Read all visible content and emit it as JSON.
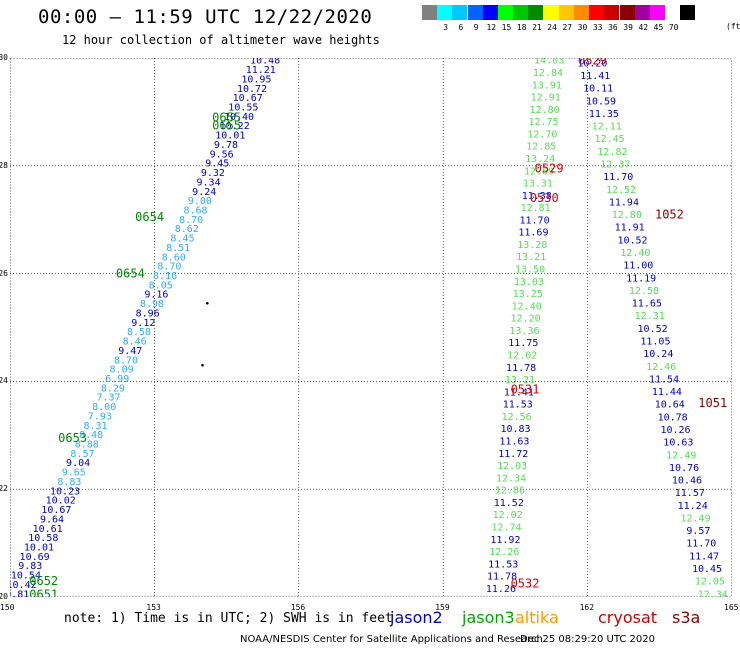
{
  "header": {
    "title": "00:00 – 11:59 UTC 12/22/2020",
    "subtitle": "12 hour collection of altimeter wave heights"
  },
  "legend": {
    "swatches": [
      {
        "label": "",
        "color": "#808080"
      },
      {
        "label": "3",
        "color": "#00ffff"
      },
      {
        "label": "6",
        "color": "#00c8ff"
      },
      {
        "label": "9",
        "color": "#0064ff"
      },
      {
        "label": "12",
        "color": "#0000ff"
      },
      {
        "label": "15",
        "color": "#00ff00"
      },
      {
        "label": "18",
        "color": "#00c800"
      },
      {
        "label": "21",
        "color": "#008c00"
      },
      {
        "label": "24",
        "color": "#ffff00"
      },
      {
        "label": "27",
        "color": "#ffc800"
      },
      {
        "label": "30",
        "color": "#ff8c00"
      },
      {
        "label": "33",
        "color": "#ff0000"
      },
      {
        "label": "36",
        "color": "#c80000"
      },
      {
        "label": "39",
        "color": "#8c0000"
      },
      {
        "label": "42",
        "color": "#a000a0"
      },
      {
        "label": "45",
        "color": "#ff00ff"
      },
      {
        "label": "70",
        "color": "#ffffff"
      },
      {
        "label": "",
        "color": "#000000"
      }
    ],
    "unit": "(ft)"
  },
  "axes": {
    "y_ticks": [
      "20",
      "22",
      "24",
      "26",
      "28",
      "30"
    ],
    "x_ticks": [
      "150",
      "153",
      "156",
      "159",
      "162",
      "165"
    ],
    "lon_range": [
      150,
      165
    ],
    "lat_range": [
      20,
      30
    ]
  },
  "footer": {
    "note": "note:  1) Time is in UTC;  2) SWH is in feet",
    "satellites": [
      {
        "name": "jason2",
        "color": "#0000cc"
      },
      {
        "name": "jason3",
        "color": "#00aa00"
      },
      {
        "name": "altika",
        "color": "#ff9900"
      },
      {
        "name": "cryosat",
        "color": "#cc0000"
      },
      {
        "name": "s3a",
        "color": "#880000"
      }
    ],
    "credit": "NOAA/NESDIS Center for Satellite Applications and Research",
    "date_stamp": "Dec 25 08:29:20 UTC 2020"
  },
  "colors": {
    "blue": "#0000cc",
    "lightblue": "#33aaff",
    "lightgreen": "#55dd55",
    "green": "#008800",
    "red": "#dd0000",
    "darkred": "#880000",
    "grid": "#000000"
  },
  "tracks": {
    "track_a_values": [
      "9.81",
      "10.42",
      "10.54",
      "9.83",
      "10.69",
      "10.01",
      "10.58",
      "10.61",
      "9.64",
      "10.67",
      "10.02",
      "10.23",
      "8.83",
      "9.65",
      "9.04",
      "8.57",
      "8.88",
      "8.48",
      "8.31",
      "7.93",
      "8.00",
      "7.37",
      "8.29",
      "6.99",
      "8.09",
      "8.70",
      "9.47",
      "8.46",
      "8.58",
      "9.12",
      "8.96",
      "8.98",
      "9.16",
      "8.05",
      "8.16",
      "8.70",
      "8.60",
      "8.51",
      "8.45",
      "8.62",
      "8.70",
      "8.68",
      "9.00",
      "9.24",
      "9.34",
      "9.32",
      "9.45",
      "9.56",
      "9.78",
      "10.01",
      "10.22",
      "10.40",
      "10.55",
      "10.67",
      "10.72",
      "10.95",
      "11.21",
      "10.48"
    ],
    "track_a_colors": [
      "b",
      "b",
      "b",
      "b",
      "b",
      "b",
      "b",
      "b",
      "b",
      "b",
      "b",
      "b",
      "l",
      "l",
      "b",
      "l",
      "l",
      "l",
      "l",
      "l",
      "l",
      "l",
      "l",
      "l",
      "l",
      "l",
      "b",
      "l",
      "l",
      "b",
      "b",
      "l",
      "b",
      "l",
      "l",
      "l",
      "l",
      "l",
      "l",
      "l",
      "l",
      "l",
      "l",
      "b",
      "b",
      "b",
      "b",
      "b",
      "b",
      "b",
      "b",
      "b",
      "b",
      "b",
      "b",
      "b",
      "b",
      "b"
    ],
    "track_a_time_labels": [
      {
        "text": "0651",
        "lat": 20.05,
        "lon": 150.4
      },
      {
        "text": "0652",
        "lat": 20.3,
        "lon": 150.4
      },
      {
        "text": "0653",
        "lat": 22.95,
        "lon": 151.0
      },
      {
        "text": "0654",
        "lat": 26.0,
        "lon": 152.2
      },
      {
        "text": "0654",
        "lat": 27.05,
        "lon": 152.6
      },
      {
        "text": "0655",
        "lat": 28.75,
        "lon": 154.2
      },
      {
        "text": "0655",
        "lat": 28.9,
        "lon": 154.2
      }
    ],
    "track_b_values": [
      "11.26",
      "11.78",
      "11.53",
      "12.26",
      "11.92",
      "12.74",
      "12.02",
      "11.52",
      "12.86",
      "12.34",
      "12.03",
      "11.72",
      "11.63",
      "10.83",
      "12.56",
      "11.53",
      "11.41",
      "13.21",
      "11.78",
      "12.02",
      "11.75",
      "13.36",
      "12.20",
      "12.40",
      "13.25",
      "13.03",
      "13.50",
      "13.21",
      "13.28",
      "11.69",
      "11.70",
      "12.81",
      "11.38",
      "13.31",
      "12.69",
      "13.24",
      "12.85",
      "12.70",
      "12.75",
      "12.80",
      "12.91",
      "13.91",
      "12.84",
      "14.03"
    ],
    "track_b_colors": [
      "b",
      "b",
      "b",
      "g",
      "b",
      "g",
      "g",
      "b",
      "g",
      "g",
      "g",
      "b",
      "b",
      "b",
      "g",
      "b",
      "b",
      "g",
      "b",
      "g",
      "b",
      "g",
      "g",
      "g",
      "g",
      "g",
      "g",
      "g",
      "g",
      "b",
      "b",
      "g",
      "b",
      "g",
      "g",
      "g",
      "g",
      "g",
      "g",
      "g",
      "g",
      "g",
      "g",
      "g"
    ],
    "track_b_time_labels": [
      {
        "text": "0532",
        "lat": 20.25,
        "lon": 160.4,
        "c": "red"
      },
      {
        "text": "0531",
        "lat": 23.85,
        "lon": 160.4,
        "c": "red"
      },
      {
        "text": "0530",
        "lat": 27.4,
        "lon": 160.8,
        "c": "red"
      },
      {
        "text": "0529",
        "lat": 27.95,
        "lon": 160.9,
        "c": "red"
      },
      {
        "text": "0529",
        "lat": 29.95,
        "lon": 161.8,
        "c": "red"
      }
    ],
    "track_c_values": [
      "12.34",
      "12.05",
      "10.45",
      "11.47",
      "11.70",
      "9.57",
      "12.49",
      "11.24",
      "11.57",
      "10.46",
      "10.76",
      "12.49",
      "10.63",
      "10.26",
      "10.78",
      "10.64",
      "11.44",
      "11.54",
      "12.46",
      "10.24",
      "11.05",
      "10.52",
      "12.31",
      "11.65",
      "12.58",
      "11.19",
      "11.00",
      "12.40",
      "10.52",
      "11.91",
      "12.80",
      "11.94",
      "12.52",
      "11.70",
      "12.37",
      "12.82",
      "12.45",
      "12.11",
      "11.35",
      "10.59",
      "10.11",
      "11.41",
      "10.20"
    ],
    "track_c_colors": [
      "g",
      "g",
      "b",
      "b",
      "b",
      "b",
      "g",
      "b",
      "b",
      "b",
      "b",
      "g",
      "b",
      "b",
      "b",
      "b",
      "b",
      "b",
      "g",
      "b",
      "b",
      "b",
      "g",
      "b",
      "g",
      "b",
      "b",
      "g",
      "b",
      "b",
      "g",
      "b",
      "g",
      "b",
      "g",
      "g",
      "g",
      "g",
      "b",
      "b",
      "b",
      "b",
      "b"
    ],
    "track_c_time_labels": [
      {
        "text": "1051",
        "lat": 23.6,
        "lon": 164.3,
        "c": "darkred"
      },
      {
        "text": "1052",
        "lat": 27.1,
        "lon": 163.4,
        "c": "darkred"
      }
    ]
  }
}
